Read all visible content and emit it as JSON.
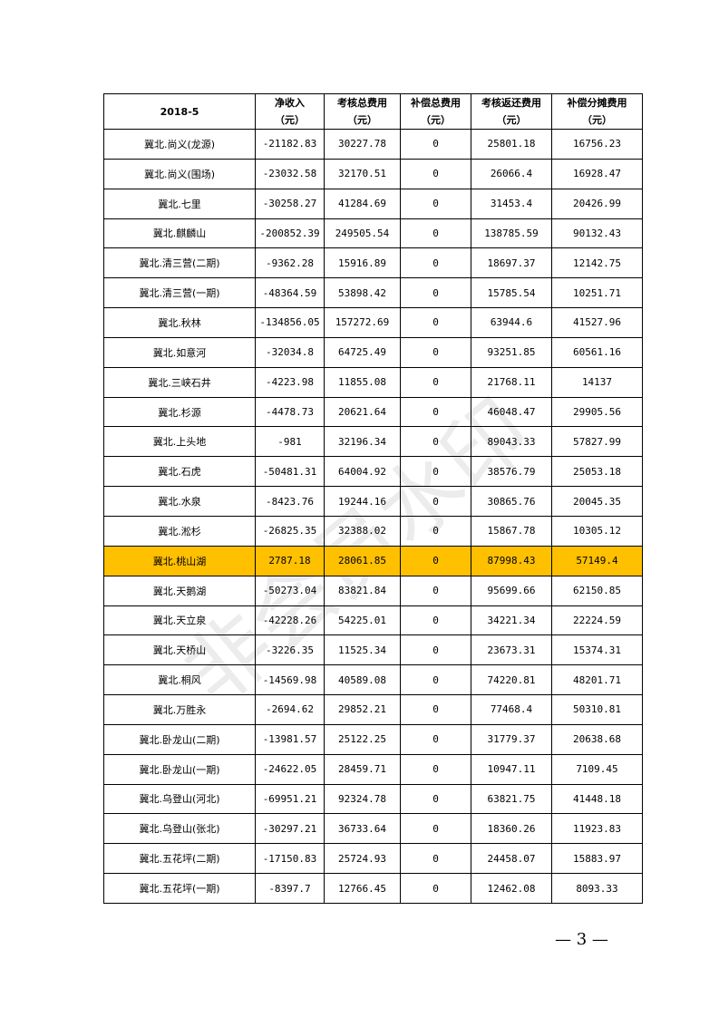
{
  "table": {
    "headers": [
      {
        "line1": "2018-5",
        "line2": ""
      },
      {
        "line1": "净收入",
        "line2": "（元）"
      },
      {
        "line1": "考核总费用",
        "line2": "（元）"
      },
      {
        "line1": "补偿总费用",
        "line2": "（元）"
      },
      {
        "line1": "考核返还费用",
        "line2": "（元）"
      },
      {
        "line1": "补偿分摊费用",
        "line2": "（元）"
      }
    ],
    "rows": [
      [
        "冀北.尚义(龙源)",
        "-21182.83",
        "30227.78",
        "0",
        "25801.18",
        "16756.23"
      ],
      [
        "冀北.尚义(围场)",
        "-23032.58",
        "32170.51",
        "0",
        "26066.4",
        "16928.47"
      ],
      [
        "冀北.七里",
        "-30258.27",
        "41284.69",
        "0",
        "31453.4",
        "20426.99"
      ],
      [
        "冀北.麒麟山",
        "-200852.39",
        "249505.54",
        "0",
        "138785.59",
        "90132.43"
      ],
      [
        "冀北.清三营(二期)",
        "-9362.28",
        "15916.89",
        "0",
        "18697.37",
        "12142.75"
      ],
      [
        "冀北.清三营(一期)",
        "-48364.59",
        "53898.42",
        "0",
        "15785.54",
        "10251.71"
      ],
      [
        "冀北.秋林",
        "-134856.05",
        "157272.69",
        "0",
        "63944.6",
        "41527.96"
      ],
      [
        "冀北.如意河",
        "-32034.8",
        "64725.49",
        "0",
        "93251.85",
        "60561.16"
      ],
      [
        "冀北.三峡石井",
        "-4223.98",
        "11855.08",
        "0",
        "21768.11",
        "14137"
      ],
      [
        "冀北.杉源",
        "-4478.73",
        "20621.64",
        "0",
        "46048.47",
        "29905.56"
      ],
      [
        "冀北.上头地",
        "-981",
        "32196.34",
        "0",
        "89043.33",
        "57827.99"
      ],
      [
        "冀北.石虎",
        "-50481.31",
        "64004.92",
        "0",
        "38576.79",
        "25053.18"
      ],
      [
        "冀北.水泉",
        "-8423.76",
        "19244.16",
        "0",
        "30865.76",
        "20045.35"
      ],
      [
        "冀北.淞杉",
        "-26825.35",
        "32388.02",
        "0",
        "15867.78",
        "10305.12"
      ],
      [
        "冀北.桃山湖",
        "2787.18",
        "28061.85",
        "0",
        "87998.43",
        "57149.4"
      ],
      [
        "冀北.天鹅湖",
        "-50273.04",
        "83821.84",
        "0",
        "95699.66",
        "62150.85"
      ],
      [
        "冀北.天立泉",
        "-42228.26",
        "54225.01",
        "0",
        "34221.34",
        "22224.59"
      ],
      [
        "冀北.天桥山",
        "-3226.35",
        "11525.34",
        "0",
        "23673.31",
        "15374.31"
      ],
      [
        "冀北.桐风",
        "-14569.98",
        "40589.08",
        "0",
        "74220.81",
        "48201.71"
      ],
      [
        "冀北.万胜永",
        "-2694.62",
        "29852.21",
        "0",
        "77468.4",
        "50310.81"
      ],
      [
        "冀北.卧龙山(二期)",
        "-13981.57",
        "25122.25",
        "0",
        "31779.37",
        "20638.68"
      ],
      [
        "冀北.卧龙山(一期)",
        "-24622.05",
        "28459.71",
        "0",
        "10947.11",
        "7109.45"
      ],
      [
        "冀北.乌登山(河北)",
        "-69951.21",
        "92324.78",
        "0",
        "63821.75",
        "41448.18"
      ],
      [
        "冀北.乌登山(张北)",
        "-30297.21",
        "36733.64",
        "0",
        "18360.26",
        "11923.83"
      ],
      [
        "冀北.五花坪(二期)",
        "-17150.83",
        "25724.93",
        "0",
        "24458.07",
        "15883.97"
      ],
      [
        "冀北.五花坪(一期)",
        "-8397.7",
        "12766.45",
        "0",
        "12462.08",
        "8093.33"
      ]
    ],
    "highlight_row": 14,
    "highlight_color": "#ffc000"
  },
  "watermark": "非会员水印",
  "page_number": "— 3 —"
}
